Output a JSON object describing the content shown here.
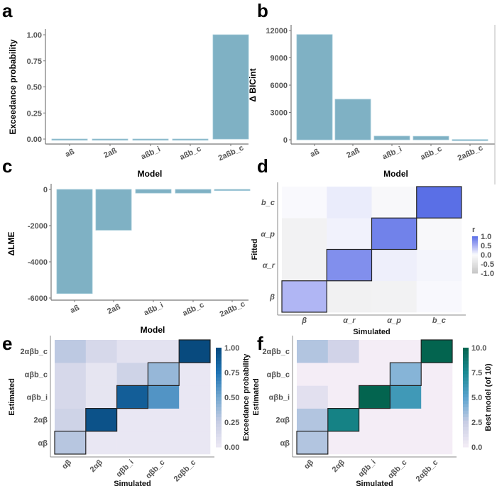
{
  "panels": {
    "a": "a",
    "b": "b",
    "c": "c",
    "d": "d",
    "e": "e",
    "f": "f"
  },
  "chart_data": [
    {
      "panel": "a",
      "type": "bar",
      "categories": [
        "aß",
        "2aß",
        "aßb_i",
        "aßb_c",
        "2aßb_c"
      ],
      "values": [
        0,
        0,
        0,
        0,
        1.0
      ],
      "xlabel": "Model",
      "ylabel": "Exceedance probability",
      "ylim": [
        0,
        1
      ],
      "yticks": [
        "0.00",
        "0.25",
        "0.50",
        "0.75",
        "1.00"
      ],
      "color": "#7fb1c4"
    },
    {
      "panel": "b",
      "type": "bar",
      "categories": [
        "aß",
        "2aß",
        "aßb_i",
        "aßb_c",
        "2aßb_c"
      ],
      "values": [
        11550,
        4450,
        400,
        380,
        20
      ],
      "xlabel": "Model",
      "ylabel": "Δ BICint",
      "ylim": [
        0,
        12000
      ],
      "yticks": [
        "0",
        "3000",
        "6000",
        "9000",
        "12000"
      ],
      "color": "#7fb1c4"
    },
    {
      "panel": "c",
      "type": "bar",
      "categories": [
        "aß",
        "2aß",
        "aßb_i",
        "aßb_c",
        "2aßb_c"
      ],
      "values": [
        -5750,
        -2250,
        -200,
        -200,
        -20
      ],
      "xlabel": "Model",
      "ylabel": "ΔLME",
      "ylim": [
        -6000,
        0
      ],
      "yticks": [
        "-6000",
        "-4000",
        "-2000",
        "0"
      ],
      "color": "#7fb1c4"
    },
    {
      "panel": "d",
      "type": "heatmap",
      "xlabel": "Simulated",
      "ylabel": "Fitted",
      "x": [
        "β",
        "α_r",
        "α_p",
        "b_c"
      ],
      "y": [
        "β",
        "α_r",
        "α_p",
        "b_c"
      ],
      "values": [
        [
          0.45,
          -0.2,
          -0.18,
          0.02
        ],
        [
          -0.18,
          0.75,
          0.08,
          0.04
        ],
        [
          -0.18,
          0.06,
          0.85,
          -0.06
        ],
        [
          0.01,
          0.1,
          -0.06,
          1.0
        ]
      ],
      "legend_title": "r",
      "legend_ticks": [
        "1.0",
        "0.5",
        "0.0",
        "-0.5",
        "-1.0"
      ],
      "range": [
        -1,
        1
      ]
    },
    {
      "panel": "e",
      "type": "heatmap",
      "xlabel": "Simulated",
      "ylabel": "Estimated",
      "x": [
        "αβ",
        "2αβ",
        "αβb_i",
        "αβb_c",
        "2αβb_c"
      ],
      "y": [
        "αβ",
        "2αβ",
        "αβb_i",
        "αβb_c",
        "2αβb_c"
      ],
      "values": [
        [
          0.3,
          0.02,
          0.02,
          0.02,
          0.02
        ],
        [
          0.2,
          0.95,
          0.02,
          0.02,
          0.02
        ],
        [
          0.15,
          0.04,
          0.88,
          0.6,
          0.02
        ],
        [
          0.15,
          0.04,
          0.2,
          0.4,
          0.02
        ],
        [
          0.28,
          0.15,
          0.06,
          0.06,
          1.0
        ]
      ],
      "legend_title": "Exceedance probability",
      "legend_ticks": [
        "1.00",
        "0.75",
        "0.50",
        "0.25",
        "0.00"
      ],
      "range": [
        0,
        1
      ]
    },
    {
      "panel": "f",
      "type": "heatmap",
      "xlabel": "Simulated",
      "ylabel": "Estimated",
      "x": [
        "αβ",
        "2αβ",
        "αβb_i",
        "αβb_c",
        "2αβb_c"
      ],
      "y": [
        "αβ",
        "2αβ",
        "αβb_i",
        "αβb_c",
        "2αβb_c"
      ],
      "values": [
        [
          3,
          0,
          0,
          0,
          0
        ],
        [
          3,
          8,
          0,
          0,
          0
        ],
        [
          1,
          0,
          10,
          6,
          0
        ],
        [
          0,
          0,
          0,
          4,
          0
        ],
        [
          3,
          2,
          0,
          0,
          10
        ]
      ],
      "legend_title": "Best model (of 10)",
      "legend_ticks": [
        "10.0",
        "7.5",
        "5.0",
        "2.5",
        "0.0"
      ],
      "range": [
        0,
        10
      ]
    }
  ]
}
